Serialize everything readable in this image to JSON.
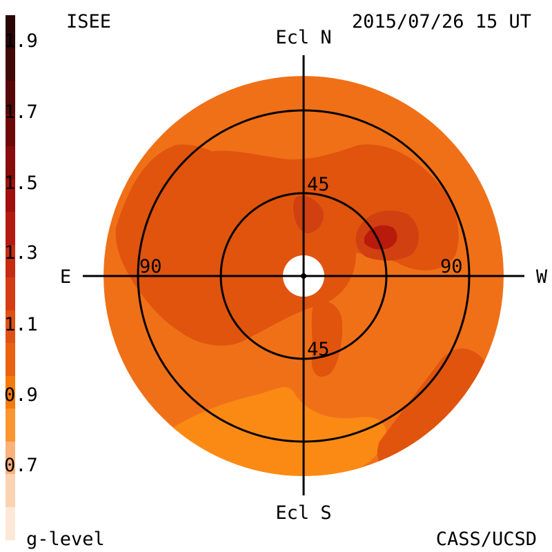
{
  "header": {
    "source_label": "ISEE",
    "timestamp": "2015/07/26 15 UT"
  },
  "footer": {
    "colorbar_title": "g-level",
    "credit": "CASS/UCSD"
  },
  "colorbar": {
    "tick_labels": [
      "1.9",
      "1.7",
      "1.5",
      "1.3",
      "1.1",
      "0.9",
      "0.7"
    ],
    "colors": [
      "#2a0505",
      "#400808",
      "#560808",
      "#6e0808",
      "#880c0c",
      "#a00f0c",
      "#b51a10",
      "#c72b12",
      "#d63c14",
      "#e05015",
      "#ea6210",
      "#f47a0a",
      "#fb9530",
      "#fbb27a",
      "#fbd2b2",
      "#fde8d8"
    ]
  },
  "map": {
    "axis_labels": {
      "north": "Ecl N",
      "south": "Ecl S",
      "east": "E",
      "west": "W"
    },
    "ring_labels": {
      "inner_top": "45",
      "inner_bottom": "45",
      "outer_left": "90",
      "outer_right": "90"
    },
    "colors": {
      "background": "#f07018",
      "mid": "#e0540e",
      "dark": "#d04010",
      "darkest": "#b81a0c",
      "light": "#fb8a14"
    }
  }
}
